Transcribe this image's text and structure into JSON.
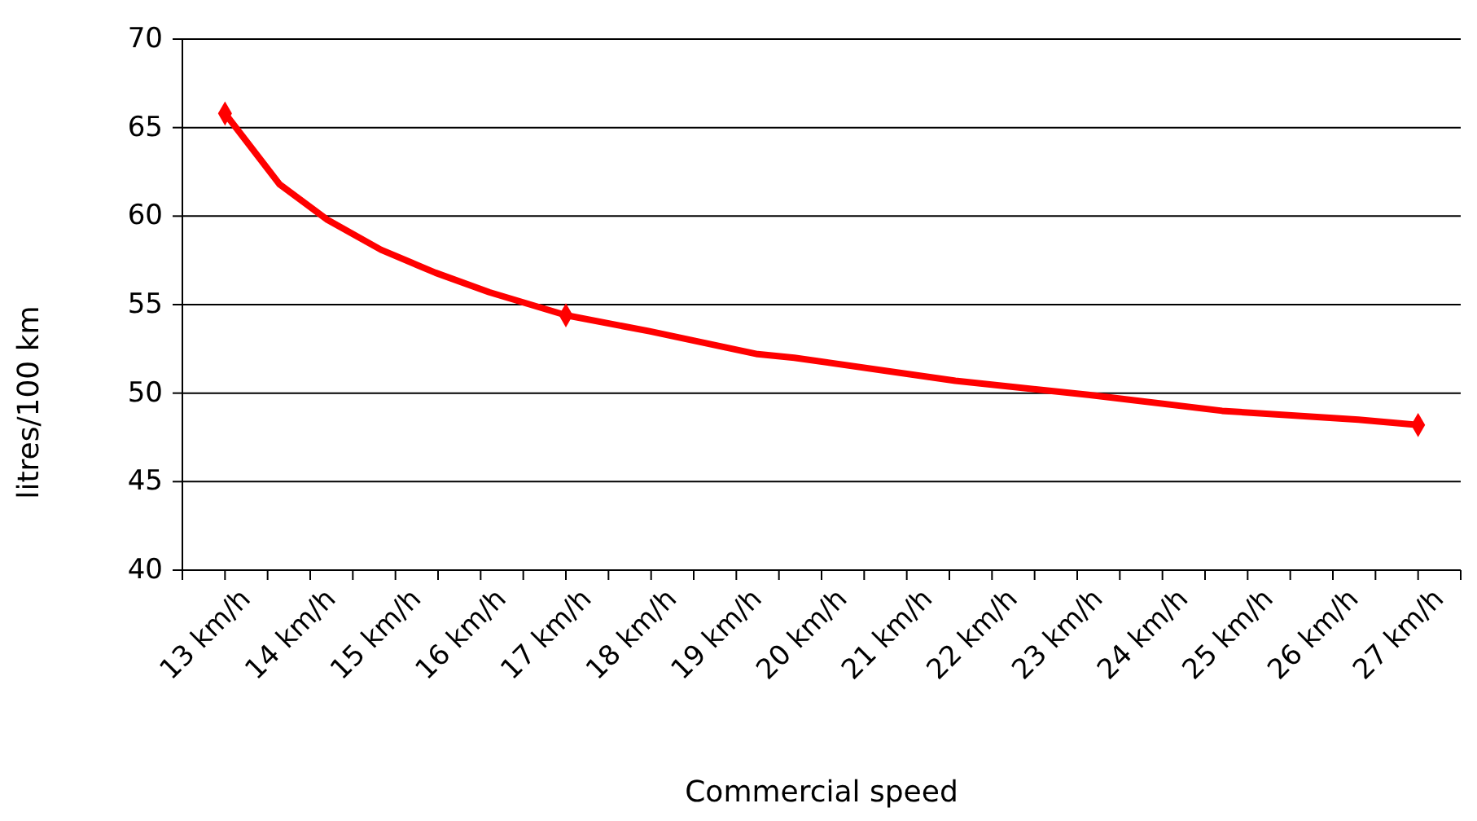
{
  "chart_data": {
    "type": "line",
    "xlabel": "Commercial speed",
    "ylabel": "litres/100 km",
    "x": [
      13,
      13.64,
      14.2,
      14.83,
      15.47,
      16.1,
      17,
      17.98,
      19.25,
      19.68,
      21.57,
      23.13,
      24.7,
      26.3,
      27
    ],
    "series": [
      {
        "color": "#ff0000",
        "marker": "none",
        "values": [
          65.8,
          61.8,
          59.8,
          58.1,
          56.8,
          55.7,
          54.4,
          53.5,
          52.2,
          52.0,
          50.7,
          49.9,
          49.0,
          48.5,
          48.2
        ]
      },
      {
        "type": "scatter",
        "color": "#ff0000",
        "marker": "diamond",
        "x": [
          13,
          17,
          27
        ],
        "values": [
          65.8,
          54.4,
          48.2
        ]
      }
    ],
    "xlim": [
      12.5,
      27.5
    ],
    "xticks": [
      {
        "value": 12.5,
        "label": null
      },
      {
        "value": 13,
        "label": "13 km/h"
      },
      {
        "value": 13.5,
        "label": null
      },
      {
        "value": 14,
        "label": "14 km/h"
      },
      {
        "value": 14.5,
        "label": null
      },
      {
        "value": 15,
        "label": "15 km/h"
      },
      {
        "value": 15.5,
        "label": null
      },
      {
        "value": 16,
        "label": "16 km/h"
      },
      {
        "value": 16.5,
        "label": null
      },
      {
        "value": 17,
        "label": "17 km/h"
      },
      {
        "value": 17.5,
        "label": null
      },
      {
        "value": 18,
        "label": "18 km/h"
      },
      {
        "value": 18.5,
        "label": null
      },
      {
        "value": 19,
        "label": "19 km/h"
      },
      {
        "value": 19.5,
        "label": null
      },
      {
        "value": 20,
        "label": "20 km/h"
      },
      {
        "value": 20.5,
        "label": null
      },
      {
        "value": 21,
        "label": "21 km/h"
      },
      {
        "value": 21.5,
        "label": null
      },
      {
        "value": 22,
        "label": "22 km/h"
      },
      {
        "value": 22.5,
        "label": null
      },
      {
        "value": 23,
        "label": "23 km/h"
      },
      {
        "value": 23.5,
        "label": null
      },
      {
        "value": 24,
        "label": "24 km/h"
      },
      {
        "value": 24.5,
        "label": null
      },
      {
        "value": 25,
        "label": "25 km/h"
      },
      {
        "value": 25.5,
        "label": null
      },
      {
        "value": 26,
        "label": "26 km/h"
      },
      {
        "value": 26.5,
        "label": null
      },
      {
        "value": 27,
        "label": "27 km/h"
      },
      {
        "value": 27.5,
        "label": null
      }
    ],
    "ylim": [
      40,
      70
    ],
    "yticks": [
      40,
      45,
      50,
      55,
      60,
      65,
      70
    ],
    "grid": "y"
  }
}
